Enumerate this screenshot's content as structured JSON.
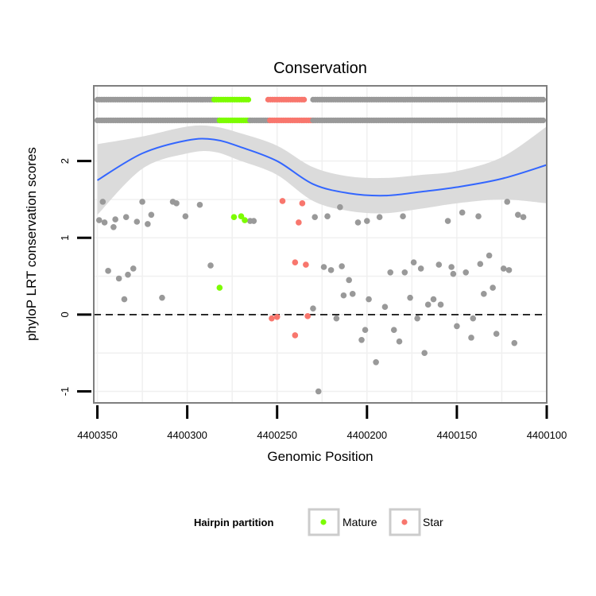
{
  "chart_data": {
    "type": "scatter",
    "title": "Conservation",
    "xlabel": "Genomic Position",
    "ylabel": "phyloP LRT conservation scores",
    "xlim": [
      4400352,
      4400100
    ],
    "ylim": [
      -1.15,
      2.98
    ],
    "x_reversed": true,
    "x_ticks": [
      4400350,
      4400300,
      4400250,
      4400200,
      4400150,
      4400100
    ],
    "x_tick_labels": [
      "4400350",
      "4400300",
      "4400250",
      "4400200",
      "4400150",
      "4400100"
    ],
    "y_ticks": [
      -1,
      0,
      1,
      2
    ],
    "y_tick_labels": [
      "-1",
      "0",
      "1",
      "2"
    ],
    "reference_line": {
      "y": 0,
      "style": "dashed"
    },
    "legend": {
      "title": "Hairpin partition",
      "placement": "bottom",
      "entries": [
        {
          "label": "Mature",
          "color": "#7cfc00"
        },
        {
          "label": "Star",
          "color": "#f8766d"
        }
      ]
    },
    "colors": {
      "background": "#ffffff",
      "grid": "#f0f0f0",
      "other": "#999999",
      "mature": "#7cfc00",
      "star": "#f8766d",
      "smooth_line": "#3366ff",
      "ribbon": "#d9d9d9"
    },
    "rug_rows": [
      {
        "y": 2.53,
        "segments": [
          [
            4400350,
            4400282,
            "other"
          ],
          [
            4400282,
            4400265,
            "mature"
          ],
          [
            4400265,
            4400254,
            "other"
          ],
          [
            4400254,
            4400230,
            "star"
          ],
          [
            4400230,
            4400102,
            "other"
          ]
        ]
      },
      {
        "y": 2.8,
        "segments": [
          [
            4400350,
            4400285,
            "other"
          ],
          [
            4400285,
            4400266,
            "mature"
          ],
          [
            4400255,
            4400235,
            "star"
          ],
          [
            4400230,
            4400102,
            "other"
          ]
        ]
      }
    ],
    "smooth": {
      "x": [
        4400350,
        4400325,
        4400300,
        4400285,
        4400270,
        4400250,
        4400230,
        4400210,
        4400190,
        4400170,
        4400150,
        4400125,
        4400100
      ],
      "y": [
        1.75,
        2.1,
        2.27,
        2.28,
        2.18,
        2.0,
        1.7,
        1.58,
        1.55,
        1.6,
        1.66,
        1.77,
        1.95
      ],
      "lower": [
        1.3,
        1.9,
        2.1,
        2.12,
        2.0,
        1.82,
        1.48,
        1.35,
        1.32,
        1.38,
        1.45,
        1.5,
        1.45
      ],
      "upper": [
        2.22,
        2.32,
        2.45,
        2.45,
        2.36,
        2.2,
        1.92,
        1.8,
        1.78,
        1.82,
        1.87,
        2.05,
        2.45
      ]
    },
    "series": [
      {
        "name": "Other",
        "color": "#999999",
        "points": [
          [
            4400349,
            1.23
          ],
          [
            4400347,
            1.47
          ],
          [
            4400346,
            1.2
          ],
          [
            4400344,
            0.57
          ],
          [
            4400341,
            1.14
          ],
          [
            4400340,
            1.24
          ],
          [
            4400338,
            0.47
          ],
          [
            4400335,
            0.2
          ],
          [
            4400334,
            1.27
          ],
          [
            4400333,
            0.52
          ],
          [
            4400330,
            0.6
          ],
          [
            4400328,
            1.21
          ],
          [
            4400325,
            1.47
          ],
          [
            4400322,
            1.18
          ],
          [
            4400320,
            1.3
          ],
          [
            4400314,
            0.22
          ],
          [
            4400308,
            1.47
          ],
          [
            4400306,
            1.45
          ],
          [
            4400301,
            1.28
          ],
          [
            4400293,
            1.43
          ],
          [
            4400287,
            0.64
          ],
          [
            4400265,
            1.22
          ],
          [
            4400263,
            1.22
          ],
          [
            4400230,
            0.08
          ],
          [
            4400229,
            1.27
          ],
          [
            4400227,
            -1.0
          ],
          [
            4400224,
            0.62
          ],
          [
            4400222,
            1.28
          ],
          [
            4400220,
            0.58
          ],
          [
            4400217,
            -0.05
          ],
          [
            4400215,
            1.4
          ],
          [
            4400214,
            0.63
          ],
          [
            4400213,
            0.25
          ],
          [
            4400210,
            0.45
          ],
          [
            4400208,
            0.27
          ],
          [
            4400205,
            1.2
          ],
          [
            4400203,
            -0.33
          ],
          [
            4400201,
            -0.2
          ],
          [
            4400200,
            1.22
          ],
          [
            4400199,
            0.2
          ],
          [
            4400195,
            -0.62
          ],
          [
            4400193,
            1.27
          ],
          [
            4400190,
            0.1
          ],
          [
            4400187,
            0.55
          ],
          [
            4400185,
            -0.2
          ],
          [
            4400182,
            -0.35
          ],
          [
            4400180,
            1.28
          ],
          [
            4400179,
            0.55
          ],
          [
            4400176,
            0.22
          ],
          [
            4400174,
            0.68
          ],
          [
            4400172,
            -0.05
          ],
          [
            4400170,
            0.6
          ],
          [
            4400168,
            -0.5
          ],
          [
            4400166,
            0.13
          ],
          [
            4400163,
            0.2
          ],
          [
            4400160,
            0.65
          ],
          [
            4400159,
            0.13
          ],
          [
            4400155,
            1.22
          ],
          [
            4400153,
            0.62
          ],
          [
            4400152,
            0.53
          ],
          [
            4400150,
            -0.15
          ],
          [
            4400147,
            1.33
          ],
          [
            4400145,
            0.55
          ],
          [
            4400142,
            -0.3
          ],
          [
            4400141,
            -0.05
          ],
          [
            4400138,
            1.28
          ],
          [
            4400137,
            0.66
          ],
          [
            4400135,
            0.27
          ],
          [
            4400132,
            0.77
          ],
          [
            4400130,
            0.35
          ],
          [
            4400128,
            -0.25
          ],
          [
            4400124,
            0.6
          ],
          [
            4400122,
            1.47
          ],
          [
            4400121,
            0.58
          ],
          [
            4400118,
            -0.37
          ],
          [
            4400116,
            1.3
          ],
          [
            4400113,
            1.27
          ]
        ]
      },
      {
        "name": "Mature",
        "color": "#7cfc00",
        "points": [
          [
            4400282,
            0.35
          ],
          [
            4400274,
            1.27
          ],
          [
            4400270,
            1.28
          ],
          [
            4400268,
            1.23
          ]
        ]
      },
      {
        "name": "Star",
        "color": "#f8766d",
        "points": [
          [
            4400253,
            -0.05
          ],
          [
            4400250,
            -0.03
          ],
          [
            4400247,
            1.48
          ],
          [
            4400240,
            -0.27
          ],
          [
            4400240,
            0.68
          ],
          [
            4400238,
            1.2
          ],
          [
            4400236,
            1.45
          ],
          [
            4400234,
            0.65
          ],
          [
            4400233,
            -0.02
          ]
        ]
      }
    ]
  }
}
